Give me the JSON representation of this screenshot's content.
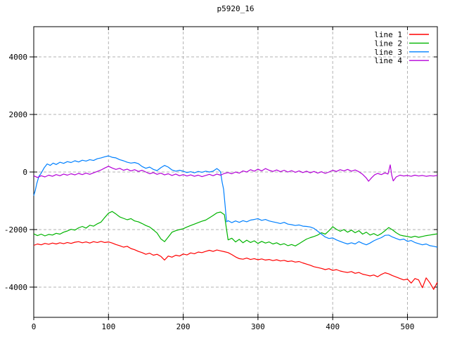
{
  "title": "p5920_16",
  "chart_data": {
    "type": "line",
    "title": "p5920_16",
    "xlabel": "",
    "ylabel": "",
    "x_range": [
      0,
      540
    ],
    "y_range": [
      -5050,
      5050
    ],
    "x_ticks": [
      0,
      100,
      200,
      300,
      400,
      500
    ],
    "y_ticks": [
      -4000,
      -2000,
      0,
      2000,
      4000
    ],
    "grid": true,
    "grid_color": "#b3b3b3",
    "border_color": "#000000",
    "background": "#ffffff",
    "legend_position": "top-right",
    "series": [
      {
        "name": "line 1",
        "color": "#ff0000",
        "x_start": 0,
        "x_step": 5,
        "y": [
          -2550,
          -2500,
          -2530,
          -2480,
          -2510,
          -2470,
          -2500,
          -2460,
          -2490,
          -2450,
          -2480,
          -2440,
          -2420,
          -2460,
          -2430,
          -2470,
          -2420,
          -2450,
          -2410,
          -2450,
          -2430,
          -2470,
          -2520,
          -2560,
          -2610,
          -2580,
          -2660,
          -2700,
          -2760,
          -2800,
          -2860,
          -2820,
          -2890,
          -2860,
          -2930,
          -3060,
          -2920,
          -2960,
          -2890,
          -2920,
          -2850,
          -2880,
          -2810,
          -2840,
          -2780,
          -2800,
          -2760,
          -2720,
          -2760,
          -2710,
          -2740,
          -2770,
          -2800,
          -2870,
          -2950,
          -3010,
          -3030,
          -2990,
          -3040,
          -3010,
          -3050,
          -3020,
          -3060,
          -3040,
          -3080,
          -3050,
          -3090,
          -3070,
          -3110,
          -3090,
          -3130,
          -3110,
          -3160,
          -3200,
          -3240,
          -3290,
          -3320,
          -3350,
          -3390,
          -3360,
          -3420,
          -3390,
          -3440,
          -3470,
          -3490,
          -3460,
          -3520,
          -3490,
          -3550,
          -3580,
          -3610,
          -3580,
          -3640,
          -3560,
          -3500,
          -3540,
          -3600,
          -3650,
          -3700,
          -3750,
          -3720,
          -3860,
          -3700,
          -3750,
          -4020,
          -3680,
          -3850,
          -4080,
          -3830
        ]
      },
      {
        "name": "line 2",
        "color": "#00b400",
        "x_start": 0,
        "x_step": 5,
        "y": [
          -2150,
          -2210,
          -2160,
          -2220,
          -2170,
          -2190,
          -2130,
          -2160,
          -2090,
          -2050,
          -1990,
          -2020,
          -1940,
          -1890,
          -1950,
          -1850,
          -1880,
          -1800,
          -1740,
          -1580,
          -1430,
          -1370,
          -1460,
          -1560,
          -1610,
          -1660,
          -1620,
          -1700,
          -1730,
          -1790,
          -1860,
          -1910,
          -2010,
          -2120,
          -2320,
          -2420,
          -2260,
          -2090,
          -2040,
          -2000,
          -1970,
          -1910,
          -1860,
          -1810,
          -1760,
          -1710,
          -1670,
          -1590,
          -1510,
          -1420,
          -1390,
          -1480,
          -2360,
          -2300,
          -2430,
          -2340,
          -2460,
          -2370,
          -2450,
          -2390,
          -2480,
          -2410,
          -2470,
          -2430,
          -2500,
          -2460,
          -2530,
          -2490,
          -2560,
          -2520,
          -2570,
          -2490,
          -2410,
          -2330,
          -2280,
          -2240,
          -2190,
          -2110,
          -2160,
          -2040,
          -1900,
          -1990,
          -2060,
          -2000,
          -2090,
          -2020,
          -2110,
          -2040,
          -2160,
          -2090,
          -2190,
          -2140,
          -2210,
          -2140,
          -2040,
          -1930,
          -2010,
          -2110,
          -2190,
          -2220,
          -2240,
          -2270,
          -2230,
          -2270,
          -2240,
          -2210,
          -2190,
          -2170,
          -2150
        ]
      },
      {
        "name": "line 3",
        "color": "#0080ff",
        "x": [
          0,
          2,
          4,
          7,
          10,
          14,
          18,
          22,
          26,
          30,
          35,
          40,
          45,
          50,
          55,
          60,
          65,
          70,
          75,
          80,
          85,
          90,
          95,
          100,
          105,
          110,
          115,
          120,
          125,
          130,
          135,
          140,
          145,
          150,
          155,
          160,
          165,
          170,
          175,
          180,
          185,
          190,
          195,
          200,
          205,
          210,
          215,
          220,
          225,
          230,
          235,
          240,
          245,
          248,
          250,
          252,
          254,
          256,
          258,
          260,
          265,
          270,
          275,
          280,
          285,
          290,
          295,
          300,
          305,
          310,
          315,
          320,
          325,
          330,
          335,
          340,
          345,
          350,
          355,
          360,
          365,
          370,
          375,
          380,
          385,
          390,
          395,
          400,
          405,
          410,
          415,
          420,
          425,
          430,
          435,
          440,
          445,
          450,
          455,
          460,
          465,
          470,
          475,
          480,
          485,
          490,
          495,
          500,
          505,
          510,
          515,
          520,
          525,
          530,
          535,
          540
        ],
        "y": [
          -820,
          -650,
          -400,
          -150,
          -40,
          150,
          280,
          230,
          310,
          260,
          340,
          300,
          360,
          330,
          390,
          350,
          410,
          380,
          430,
          400,
          460,
          490,
          530,
          560,
          510,
          490,
          430,
          390,
          340,
          310,
          330,
          290,
          190,
          130,
          170,
          90,
          50,
          150,
          230,
          170,
          70,
          30,
          60,
          30,
          -20,
          10,
          -30,
          20,
          -10,
          30,
          0,
          30,
          120,
          60,
          0,
          -350,
          -600,
          -1150,
          -1730,
          -1690,
          -1760,
          -1700,
          -1750,
          -1690,
          -1730,
          -1670,
          -1650,
          -1620,
          -1680,
          -1650,
          -1700,
          -1730,
          -1760,
          -1790,
          -1750,
          -1810,
          -1830,
          -1860,
          -1840,
          -1880,
          -1890,
          -1910,
          -1960,
          -2060,
          -2160,
          -2260,
          -2310,
          -2290,
          -2360,
          -2410,
          -2460,
          -2500,
          -2460,
          -2500,
          -2420,
          -2480,
          -2530,
          -2470,
          -2390,
          -2330,
          -2280,
          -2200,
          -2190,
          -2260,
          -2310,
          -2360,
          -2330,
          -2410,
          -2380,
          -2450,
          -2490,
          -2530,
          -2500,
          -2560,
          -2580,
          -2610
        ]
      },
      {
        "name": "line 4",
        "color": "#b400d8",
        "x": [
          0,
          5,
          10,
          15,
          20,
          25,
          30,
          35,
          40,
          45,
          50,
          55,
          60,
          65,
          70,
          75,
          80,
          85,
          90,
          95,
          100,
          105,
          110,
          115,
          120,
          125,
          130,
          135,
          140,
          145,
          150,
          155,
          160,
          165,
          170,
          175,
          180,
          185,
          190,
          195,
          200,
          205,
          210,
          215,
          220,
          225,
          230,
          235,
          240,
          245,
          250,
          255,
          260,
          265,
          270,
          275,
          280,
          285,
          290,
          295,
          300,
          305,
          310,
          315,
          320,
          325,
          330,
          335,
          340,
          345,
          350,
          355,
          360,
          365,
          370,
          375,
          380,
          385,
          390,
          395,
          400,
          405,
          410,
          415,
          420,
          425,
          430,
          435,
          440,
          445,
          448,
          452,
          456,
          460,
          465,
          470,
          474,
          477,
          479,
          481,
          485,
          490,
          495,
          500,
          505,
          510,
          515,
          520,
          525,
          530,
          535,
          540
        ],
        "y": [
          -130,
          -190,
          -130,
          -170,
          -110,
          -150,
          -90,
          -130,
          -70,
          -110,
          -60,
          -100,
          -50,
          -90,
          -40,
          -80,
          -30,
          20,
          70,
          140,
          200,
          140,
          90,
          130,
          60,
          100,
          40,
          80,
          20,
          60,
          0,
          -60,
          -20,
          -80,
          -40,
          -100,
          -60,
          -120,
          -70,
          -130,
          -90,
          -140,
          -100,
          -150,
          -110,
          -160,
          -120,
          -80,
          -130,
          -70,
          -110,
          -50,
          -20,
          -60,
          0,
          -40,
          40,
          0,
          80,
          30,
          100,
          40,
          120,
          60,
          20,
          70,
          10,
          60,
          0,
          50,
          -10,
          40,
          -20,
          30,
          -30,
          20,
          -40,
          10,
          -50,
          0,
          60,
          20,
          80,
          40,
          90,
          30,
          70,
          10,
          -80,
          -210,
          -320,
          -200,
          -100,
          -50,
          -90,
          -30,
          -70,
          250,
          -120,
          -310,
          -170,
          -110,
          -140,
          -120,
          -150,
          -110,
          -140,
          -120,
          -150,
          -130,
          -140,
          -120
        ]
      }
    ]
  }
}
